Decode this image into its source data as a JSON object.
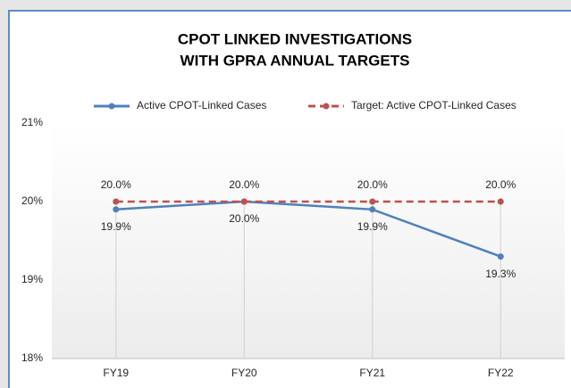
{
  "chart_data": {
    "type": "line",
    "title": [
      "CPOT LINKED INVESTIGATIONS",
      "WITH GPRA ANNUAL TARGETS"
    ],
    "categories": [
      "FY19",
      "FY20",
      "FY21",
      "FY22"
    ],
    "series": [
      {
        "name": "Active CPOT-Linked Cases",
        "color": "#4f81bd",
        "dash": false,
        "values": [
          19.9,
          20.0,
          19.9,
          19.3
        ],
        "value_labels": [
          "19.9%",
          "20.0%",
          "19.9%",
          "19.3%"
        ],
        "label_position": "below"
      },
      {
        "name": "Target: Active CPOT-Linked Cases",
        "color": "#c0504d",
        "dash": true,
        "values": [
          20,
          20,
          20,
          20
        ],
        "value_labels": [
          "20.0%",
          "20.0%",
          "20.0%",
          "20.0%"
        ],
        "label_position": "above"
      }
    ],
    "ylim": [
      18,
      21
    ],
    "yticks": [
      {
        "value": 18,
        "label": "18%"
      },
      {
        "value": 19,
        "label": "19%"
      },
      {
        "value": 20,
        "label": "20%"
      },
      {
        "value": 21,
        "label": "21%"
      }
    ],
    "grid": false,
    "legend": "top",
    "drop_lines": true
  }
}
